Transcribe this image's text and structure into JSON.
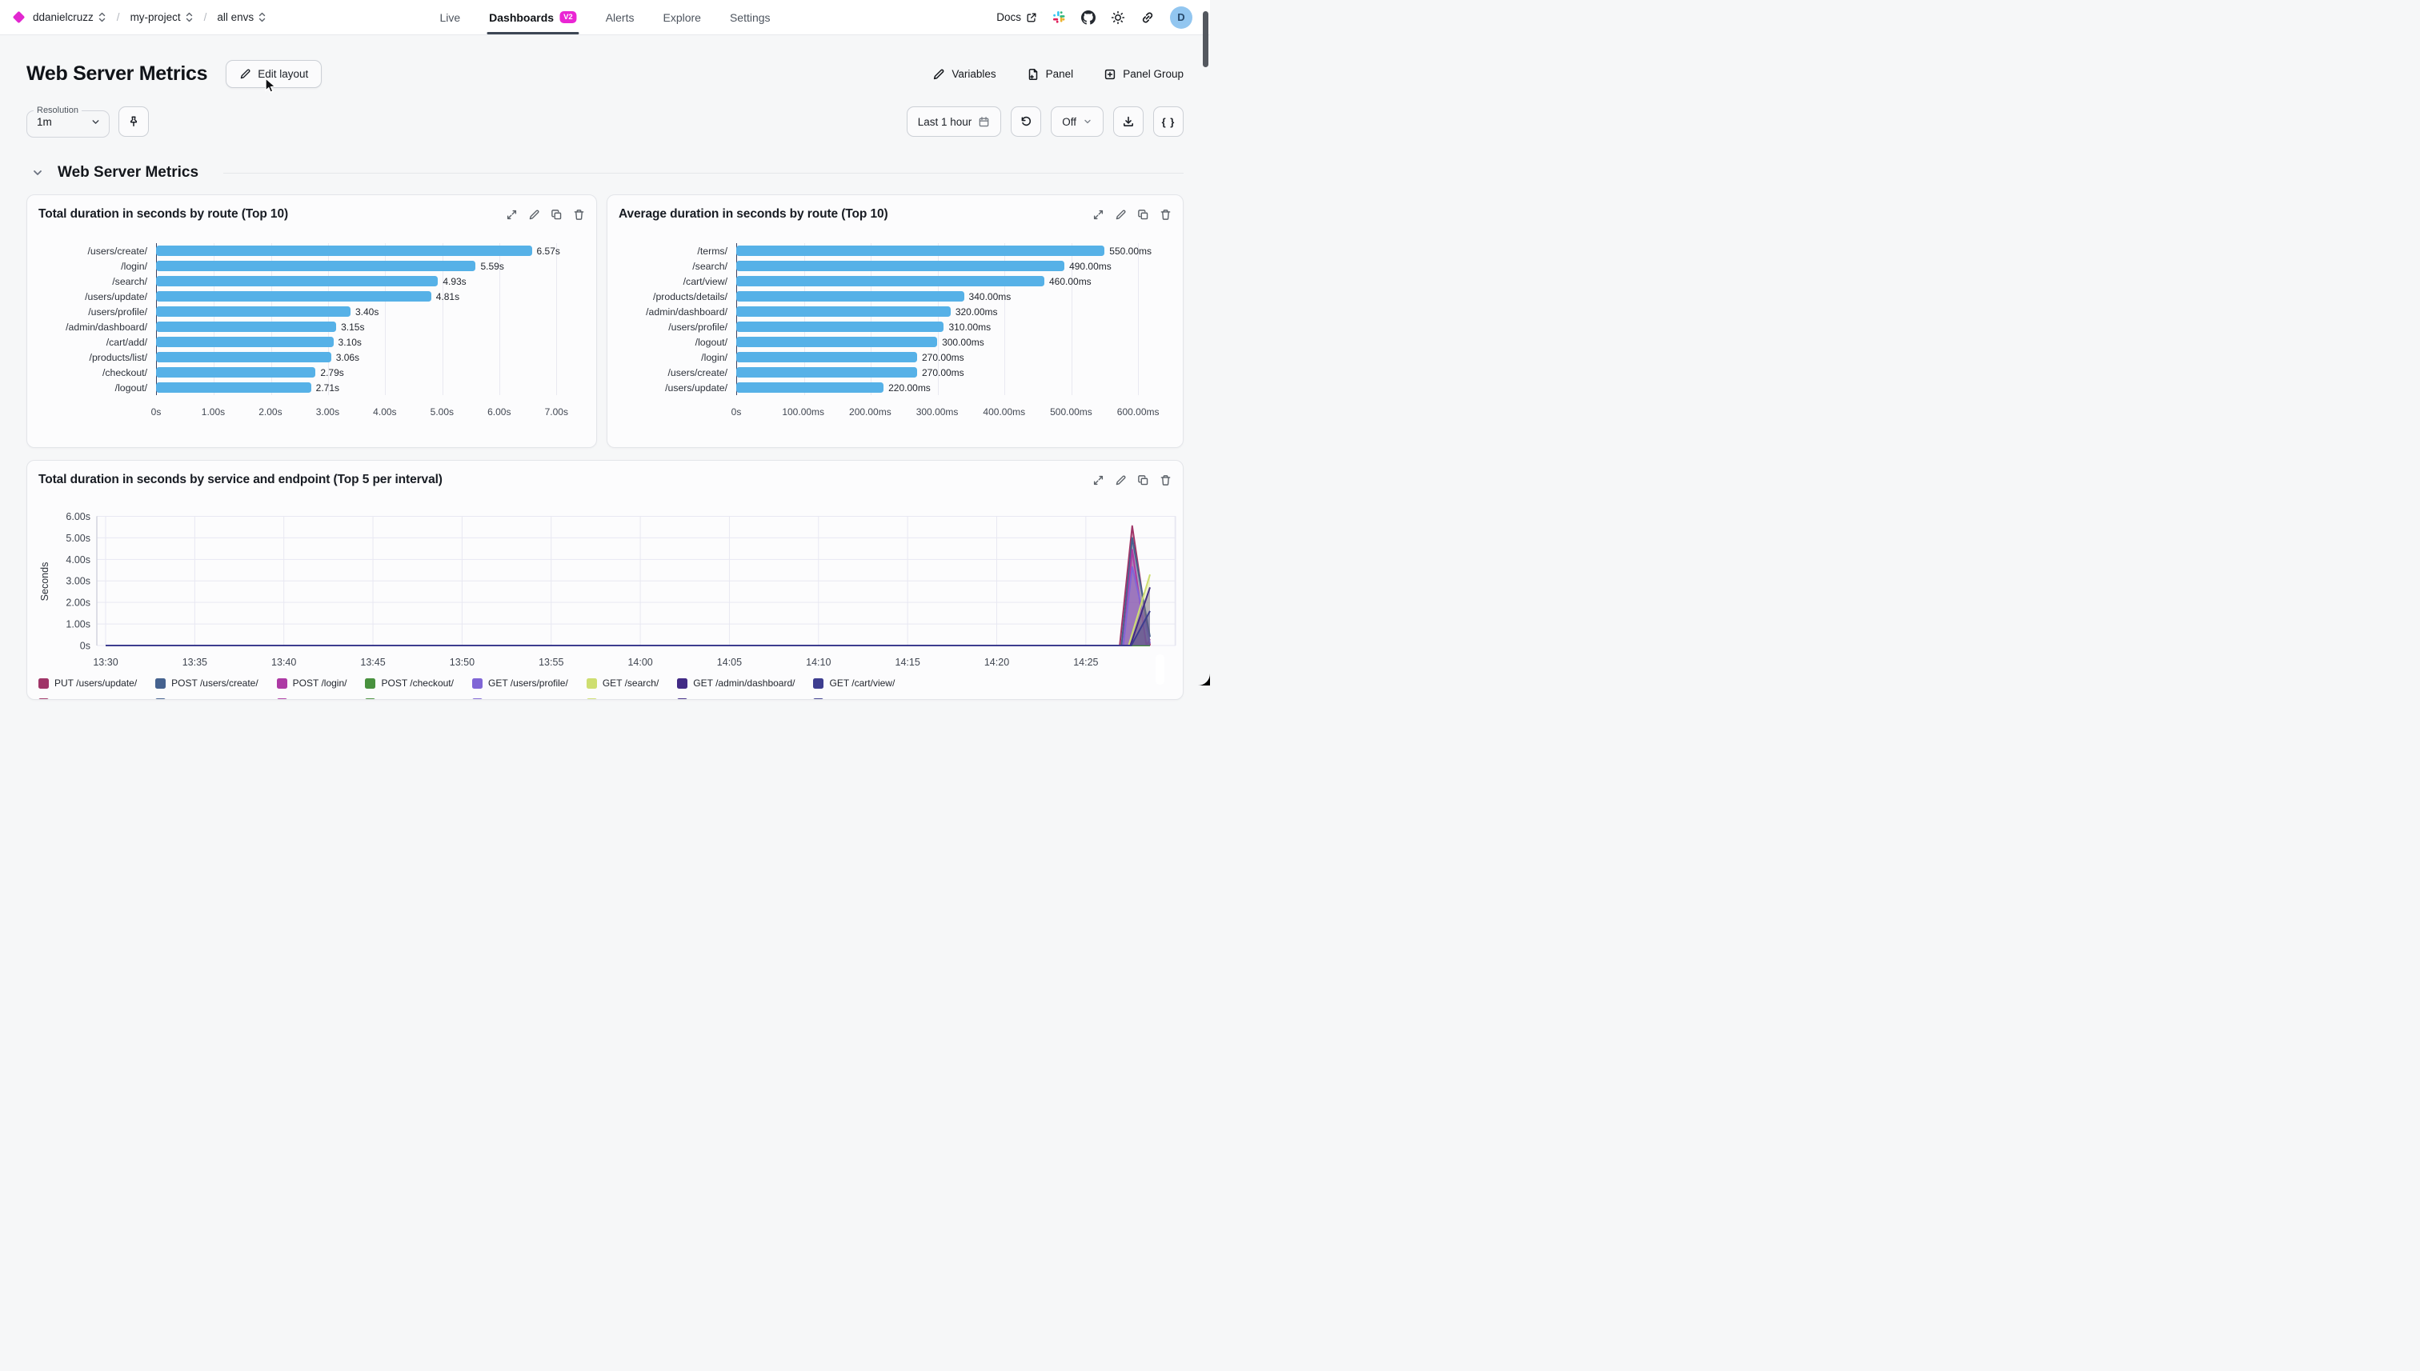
{
  "nav": {
    "logo": "diamond-icon",
    "breadcrumbs": [
      {
        "label": "ddanielcruzz"
      },
      {
        "label": "my-project"
      },
      {
        "label": "all envs"
      }
    ],
    "separator": "/",
    "tabs": [
      {
        "label": "Live"
      },
      {
        "label": "Dashboards",
        "badge": "V2",
        "active": true
      },
      {
        "label": "Alerts"
      },
      {
        "label": "Explore"
      },
      {
        "label": "Settings"
      }
    ],
    "docs_label": "Docs",
    "avatar_letter": "D"
  },
  "header": {
    "title": "Web Server Metrics",
    "edit_layout": "Edit layout",
    "variables": "Variables",
    "panel": "Panel",
    "panel_group": "Panel Group"
  },
  "controls": {
    "resolution_label": "Resolution",
    "resolution_value": "1m",
    "time_range": "Last 1 hour",
    "auto_refresh": "Off",
    "code_button": "{ }"
  },
  "section": {
    "title": "Web Server Metrics"
  },
  "colors": {
    "accent_magenta": "#e228d0",
    "bar_blue": "#56b1e7",
    "active_tab_underline": "#3d4654",
    "avatar_bg": "#92c6f0"
  },
  "chart_data": [
    {
      "type": "bar",
      "orientation": "horizontal",
      "title": "Total duration in seconds by route (Top 10)",
      "unit": "s",
      "categories": [
        "/users/create/",
        "/login/",
        "/search/",
        "/users/update/",
        "/users/profile/",
        "/admin/dashboard/",
        "/cart/add/",
        "/products/list/",
        "/checkout/",
        "/logout/"
      ],
      "values": [
        6.57,
        5.59,
        4.93,
        4.81,
        3.4,
        3.15,
        3.1,
        3.06,
        2.79,
        2.71
      ],
      "value_labels": [
        "6.57s",
        "5.59s",
        "4.93s",
        "4.81s",
        "3.40s",
        "3.15s",
        "3.10s",
        "3.06s",
        "2.79s",
        "2.71s"
      ],
      "x_ticks": [
        {
          "v": 0,
          "label": "0s"
        },
        {
          "v": 1,
          "label": "1.00s"
        },
        {
          "v": 2,
          "label": "2.00s"
        },
        {
          "v": 3,
          "label": "3.00s"
        },
        {
          "v": 4,
          "label": "4.00s"
        },
        {
          "v": 5,
          "label": "5.00s"
        },
        {
          "v": 6,
          "label": "6.00s"
        },
        {
          "v": 7,
          "label": "7.00s"
        }
      ],
      "axis_max": 7.5,
      "bar_color": "#56b1e7",
      "grid": true
    },
    {
      "type": "bar",
      "orientation": "horizontal",
      "title": "Average duration in seconds by route (Top 10)",
      "unit": "ms",
      "categories": [
        "/terms/",
        "/search/",
        "/cart/view/",
        "/products/details/",
        "/admin/dashboard/",
        "/users/profile/",
        "/logout/",
        "/login/",
        "/users/create/",
        "/users/update/"
      ],
      "values": [
        550,
        490,
        460,
        340,
        320,
        310,
        300,
        270,
        270,
        220
      ],
      "value_labels": [
        "550.00ms",
        "490.00ms",
        "460.00ms",
        "340.00ms",
        "320.00ms",
        "310.00ms",
        "300.00ms",
        "270.00ms",
        "270.00ms",
        "220.00ms"
      ],
      "x_ticks": [
        {
          "v": 0,
          "label": "0s"
        },
        {
          "v": 100,
          "label": "100.00ms"
        },
        {
          "v": 200,
          "label": "200.00ms"
        },
        {
          "v": 300,
          "label": "300.00ms"
        },
        {
          "v": 400,
          "label": "400.00ms"
        },
        {
          "v": 500,
          "label": "500.00ms"
        },
        {
          "v": 600,
          "label": "600.00ms"
        }
      ],
      "axis_max": 650,
      "bar_color": "#56b1e7",
      "grid": true
    },
    {
      "type": "area",
      "title": "Total duration in seconds by service and endpoint (Top 5 per interval)",
      "ylabel": "Seconds",
      "ylim": [
        0,
        6
      ],
      "y_ticks": [
        {
          "v": 0,
          "label": "0s"
        },
        {
          "v": 1,
          "label": "1.00s"
        },
        {
          "v": 2,
          "label": "2.00s"
        },
        {
          "v": 3,
          "label": "3.00s"
        },
        {
          "v": 4,
          "label": "4.00s"
        },
        {
          "v": 5,
          "label": "5.00s"
        },
        {
          "v": 6,
          "label": "6.00s"
        }
      ],
      "x_ticks": [
        {
          "m": 0,
          "label": "13:30"
        },
        {
          "m": 5,
          "label": "13:35"
        },
        {
          "m": 10,
          "label": "13:40"
        },
        {
          "m": 15,
          "label": "13:45"
        },
        {
          "m": 20,
          "label": "13:50"
        },
        {
          "m": 25,
          "label": "13:55"
        },
        {
          "m": 30,
          "label": "14:00"
        },
        {
          "m": 35,
          "label": "14:05"
        },
        {
          "m": 40,
          "label": "14:10"
        },
        {
          "m": 45,
          "label": "14:15"
        },
        {
          "m": 50,
          "label": "14:20"
        },
        {
          "m": 55,
          "label": "14:25"
        }
      ],
      "xlim_minutes": [
        0,
        60
      ],
      "grid": true,
      "legend_position": "bottom",
      "series": [
        {
          "name": "PUT /users/update/",
          "color": "#a03568",
          "points": [
            [
              0,
              0
            ],
            [
              56.9,
              0
            ],
            [
              57.6,
              5.55
            ],
            [
              58.6,
              0
            ]
          ]
        },
        {
          "name": "POST /users/create/",
          "color": "#45628f",
          "points": [
            [
              0,
              0
            ],
            [
              57.0,
              0
            ],
            [
              57.6,
              5.0
            ],
            [
              58.6,
              0.4
            ]
          ]
        },
        {
          "name": "POST /login/",
          "color": "#ad3aa4",
          "points": [
            [
              0,
              0
            ],
            [
              57.1,
              0
            ],
            [
              57.6,
              4.45
            ],
            [
              58.4,
              0
            ],
            [
              58.6,
              0.3
            ]
          ]
        },
        {
          "name": "POST /checkout/",
          "color": "#48913e",
          "points": [
            [
              0,
              0
            ],
            [
              58.6,
              0
            ]
          ]
        },
        {
          "name": "GET /users/profile/",
          "color": "#8066d6",
          "points": [
            [
              0,
              0
            ],
            [
              57.1,
              0
            ],
            [
              57.6,
              3.65
            ],
            [
              58.6,
              0.1
            ]
          ]
        },
        {
          "name": "GET /search/",
          "color": "#cede70",
          "points": [
            [
              0,
              0
            ],
            [
              57.4,
              0
            ],
            [
              58.6,
              3.3
            ]
          ]
        },
        {
          "name": "GET /admin/dashboard/",
          "color": "#412a85",
          "points": [
            [
              0,
              0
            ],
            [
              57.5,
              0
            ],
            [
              58.6,
              2.7
            ]
          ]
        },
        {
          "name": "GET /cart/view/",
          "color": "#3d3d8f",
          "points": [
            [
              0,
              0
            ],
            [
              57.55,
              0
            ],
            [
              58.6,
              1.6
            ]
          ]
        }
      ]
    }
  ]
}
